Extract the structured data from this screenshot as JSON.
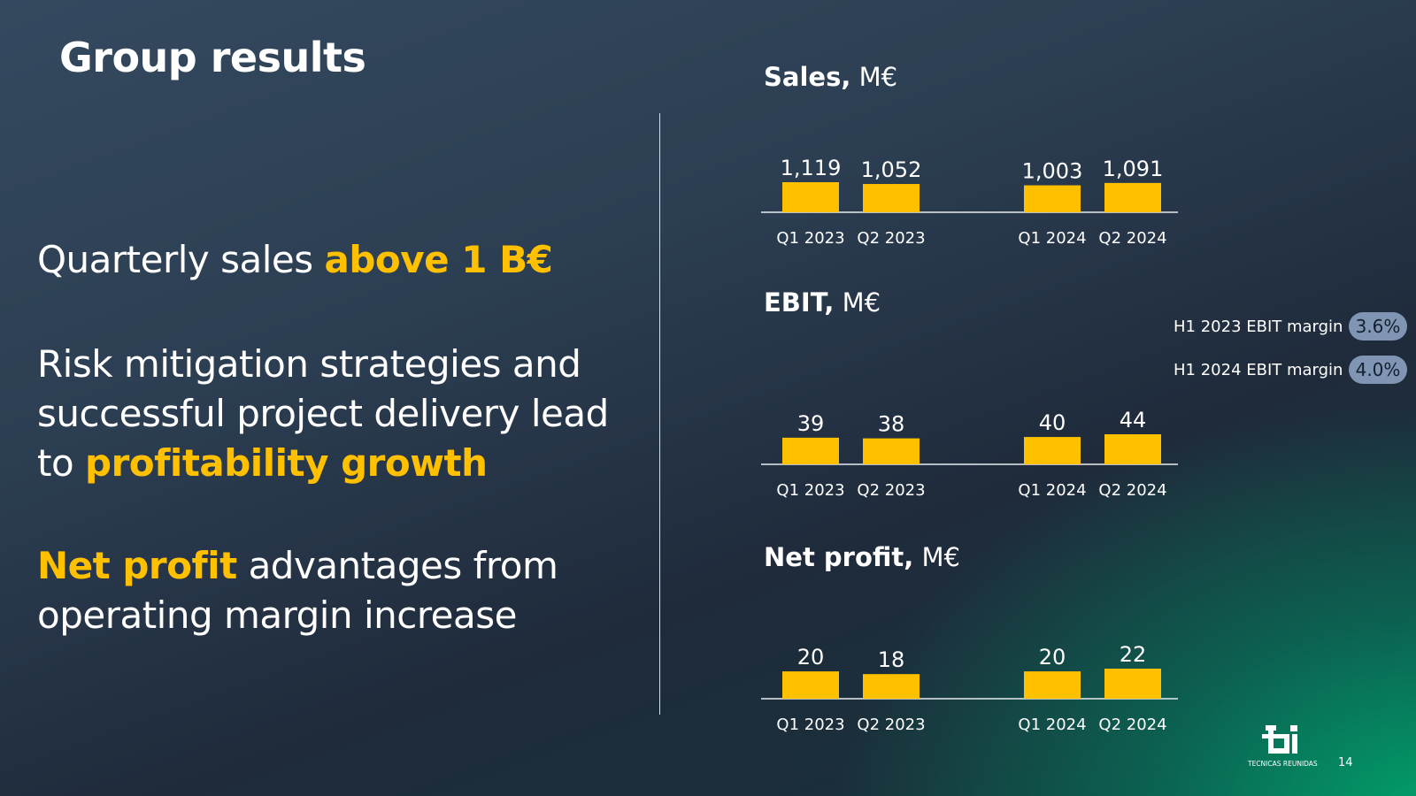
{
  "slide": {
    "title": "Group results",
    "messages": [
      {
        "text": "Quarterly sales ",
        "highlight": "above 1 B€"
      },
      {
        "text": "Risk mitigation strategies and successful project delivery lead to ",
        "highlight": "profitability growth"
      },
      {
        "highlight": "Net profit",
        "text": " advantages from operating margin increase"
      }
    ],
    "ebit_margins": [
      {
        "label": "H1 2023 EBIT margin",
        "value": "3.6%"
      },
      {
        "label": "H1 2024 EBIT margin",
        "value": "4.0%"
      }
    ],
    "logo_text": "TECNICAS REUNIDAS",
    "page_number": "14"
  },
  "colors": {
    "bar": "#ffc000",
    "highlight": "#ffc000",
    "pill": "#7f95b3",
    "accent_green": "#00a66e"
  },
  "chart_data": [
    {
      "type": "bar",
      "title": "Sales,",
      "unit": "M€",
      "categories": [
        "Q1 2023",
        "Q2 2023",
        "Q1 2024",
        "Q2 2024"
      ],
      "values": [
        1119,
        1052,
        1003,
        1091
      ],
      "value_labels": [
        "1,119",
        "1,052",
        "1,003",
        "1,091"
      ]
    },
    {
      "type": "bar",
      "title": "EBIT,",
      "unit": "M€",
      "categories": [
        "Q1 2023",
        "Q2 2023",
        "Q1 2024",
        "Q2 2024"
      ],
      "values": [
        39,
        38,
        40,
        44
      ],
      "value_labels": [
        "39",
        "38",
        "40",
        "44"
      ]
    },
    {
      "type": "bar",
      "title": "Net profit,",
      "unit": "M€",
      "categories": [
        "Q1 2023",
        "Q2 2023",
        "Q1 2024",
        "Q2 2024"
      ],
      "values": [
        20,
        18,
        20,
        22
      ],
      "value_labels": [
        "20",
        "18",
        "20",
        "22"
      ]
    }
  ]
}
